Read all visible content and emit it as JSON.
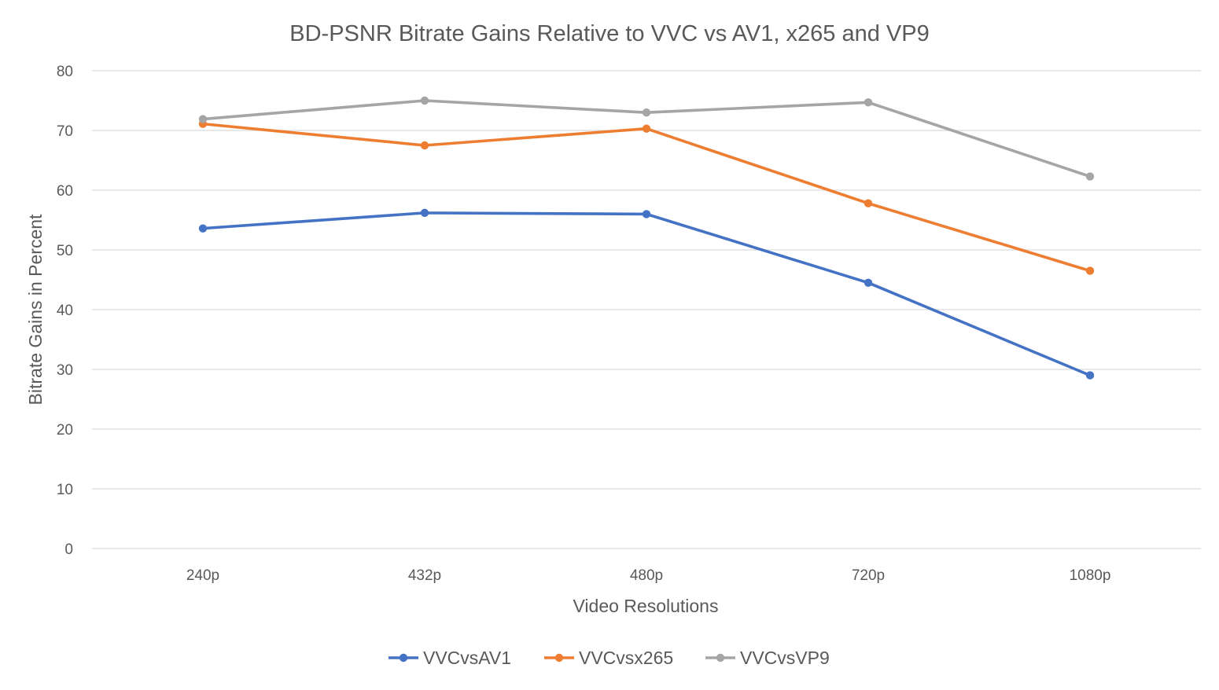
{
  "chart_data": {
    "type": "line",
    "title": "BD-PSNR Bitrate Gains Relative to VVC vs AV1, x265 and VP9",
    "xlabel": "Video Resolutions",
    "ylabel": "Bitrate Gains in Percent",
    "categories": [
      "240p",
      "432p",
      "480p",
      "720p",
      "1080p"
    ],
    "ylim": [
      0,
      80
    ],
    "yticks": [
      0,
      10,
      20,
      30,
      40,
      50,
      60,
      70,
      80
    ],
    "grid": true,
    "legend_position": "bottom",
    "series": [
      {
        "name": "VVCvsAV1",
        "color": "#4472c4",
        "values": [
          53.6,
          56.2,
          56.0,
          44.5,
          29.0
        ]
      },
      {
        "name": "VVCvsx265",
        "color": "#ed7d31",
        "values": [
          71.1,
          67.5,
          70.3,
          57.8,
          46.5
        ]
      },
      {
        "name": "VVCvsVP9",
        "color": "#a5a5a5",
        "values": [
          71.9,
          75.0,
          73.0,
          74.7,
          62.3
        ]
      }
    ]
  }
}
